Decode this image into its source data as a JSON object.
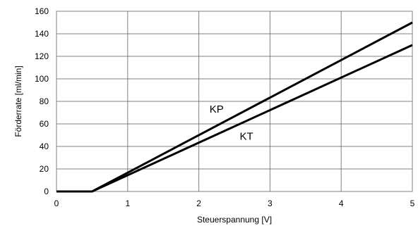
{
  "chart_data": {
    "type": "line",
    "title": "",
    "xlabel": "Steuerspannung  [V]",
    "ylabel": "Förderrate [ml/min]",
    "xlim": [
      0,
      5
    ],
    "ylim": [
      0,
      160
    ],
    "x_ticks": [
      "0",
      "1",
      "2",
      "3",
      "4",
      "5"
    ],
    "y_ticks": [
      "0",
      "20",
      "40",
      "60",
      "80",
      "100",
      "120",
      "140",
      "160"
    ],
    "grid": true,
    "legend": "none",
    "series": [
      {
        "name": "KP",
        "color": "#000000",
        "points": [
          [
            0,
            0
          ],
          [
            0.5,
            0
          ],
          [
            5,
            150
          ]
        ],
        "label_at": [
          2.25,
          70
        ]
      },
      {
        "name": "KT",
        "color": "#000000",
        "points": [
          [
            0,
            0
          ],
          [
            0.5,
            0
          ],
          [
            5,
            130
          ]
        ],
        "label_at": [
          2.67,
          46
        ]
      }
    ]
  }
}
